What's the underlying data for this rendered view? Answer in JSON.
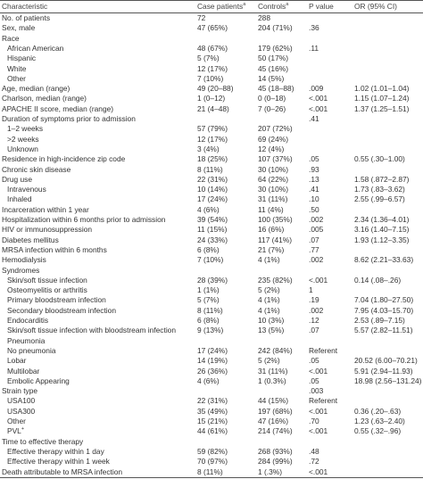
{
  "header": {
    "columns": [
      {
        "text": "Characteristic"
      },
      {
        "text": "Case patients",
        "sup": "a"
      },
      {
        "text": "Controls",
        "sup": "a"
      },
      {
        "text": "P value"
      },
      {
        "text": "OR (95% CI)"
      }
    ]
  },
  "table": {
    "rows": [
      {
        "cells": [
          "No. of patients",
          "72",
          "288",
          null,
          null
        ]
      },
      {
        "cells": [
          "Sex, male",
          "47 (65%)",
          "204 (71%)",
          ".36",
          null
        ]
      },
      {
        "cells": [
          "Race",
          null,
          null,
          null,
          null
        ]
      },
      {
        "cells": [
          "African American",
          "48 (67%)",
          "179 (62%)",
          ".11",
          null
        ],
        "indent": true
      },
      {
        "cells": [
          "Hispanic",
          "5 (7%)",
          "50 (17%)",
          null,
          null
        ],
        "indent": true
      },
      {
        "cells": [
          "White",
          "12 (17%)",
          "45 (16%)",
          null,
          null
        ],
        "indent": true
      },
      {
        "cells": [
          "Other",
          "7 (10%)",
          "14 (5%)",
          null,
          null
        ],
        "indent": true
      },
      {
        "cells": [
          "Age, median (range)",
          "49 (20–88)",
          "45 (18–88)",
          ".009",
          "1.02 (1.01–1.04)"
        ]
      },
      {
        "cells": [
          "Charlson, median (range)",
          "1 (0–12)",
          "0 (0–18)",
          "<.001",
          "1.15 (1.07–1.24)"
        ]
      },
      {
        "cells": [
          "APACHE II score, median (range)",
          "21 (4–48)",
          "7 (0–26)",
          "<.001",
          "1.37 (1.25–1.51)"
        ]
      },
      {
        "cells": [
          "Duration of symptoms prior to admission",
          null,
          null,
          ".41",
          null
        ]
      },
      {
        "cells": [
          "1–2 weeks",
          "57 (79%)",
          "207 (72%)",
          null,
          null
        ],
        "indent": true
      },
      {
        "cells": [
          ">2 weeks",
          "12 (17%)",
          "69 (24%)",
          null,
          null
        ],
        "indent": true
      },
      {
        "cells": [
          "Unknown",
          "3 (4%)",
          "12 (4%)",
          null,
          null
        ],
        "indent": true
      },
      {
        "cells": [
          "Residence in high-incidence zip code",
          "18 (25%)",
          "107 (37%)",
          ".05",
          "0.55 (.30–1.00)"
        ]
      },
      {
        "cells": [
          "Chronic skin disease",
          "8 (11%)",
          "30 (10%)",
          ".93",
          null
        ]
      },
      {
        "cells": [
          "Drug use",
          "22 (31%)",
          "64 (22%)",
          ".13",
          "1.58 (.872–2.87)"
        ]
      },
      {
        "cells": [
          "Intravenous",
          "10 (14%)",
          "30 (10%)",
          ".41",
          "1.73 (.83–3.62)"
        ],
        "indent": true
      },
      {
        "cells": [
          "Inhaled",
          "17 (24%)",
          "31 (11%)",
          ".10",
          "2.55 (.99–6.57)"
        ],
        "indent": true
      },
      {
        "cells": [
          "Incarceration within 1 year",
          "4 (6%)",
          "11 (4%)",
          ".50",
          null
        ]
      },
      {
        "cells": [
          "Hospitalization within 6 months prior to admission",
          "39 (54%)",
          "100 (35%)",
          ".002",
          "2.34 (1.36–4.01)"
        ]
      },
      {
        "cells": [
          "HIV or immunosuppression",
          "11 (15%)",
          "16 (6%)",
          ".005",
          "3.16 (1.40–7.15)"
        ]
      },
      {
        "cells": [
          "Diabetes mellitus",
          "24 (33%)",
          "117 (41%)",
          ".07",
          "1.93 (1.12–3.35)"
        ]
      },
      {
        "cells": [
          "MRSA infection within 6 months",
          "6 (8%)",
          "21 (7%)",
          ".77",
          null
        ]
      },
      {
        "cells": [
          "Hemodialysis",
          "7 (10%)",
          "4 (1%)",
          ".002",
          "8.62 (2.21–33.63)"
        ]
      },
      {
        "cells": [
          "Syndromes",
          null,
          null,
          null,
          null
        ]
      },
      {
        "cells": [
          "Skin/soft tissue infection",
          "28 (39%)",
          "235 (82%)",
          "<.001",
          "0.14 (.08–.26)"
        ],
        "indent": true
      },
      {
        "cells": [
          "Osteomyelitis or arthritis",
          "1 (1%)",
          "5 (2%)",
          "1",
          null
        ],
        "indent": true
      },
      {
        "cells": [
          "Primary bloodstream infection",
          "5 (7%)",
          "4 (1%)",
          ".19",
          "7.04 (1.80–27.50)"
        ],
        "indent": true
      },
      {
        "cells": [
          "Secondary bloodstream infection",
          "8 (11%)",
          "4 (1%)",
          ".002",
          "7.95 (4.03–15.70)"
        ],
        "indent": true
      },
      {
        "cells": [
          "Endocarditis",
          "6 (8%)",
          "10 (3%)",
          ".12",
          "2.53 (.89–7.15)"
        ],
        "indent": true
      },
      {
        "cells": [
          "Skin/soft tissue infection with bloodstream infection",
          "9 (13%)",
          "13 (5%)",
          ".07",
          "5.57 (2.82–11.51)"
        ],
        "indent": true
      },
      {
        "cells": [
          "Pneumonia",
          null,
          null,
          null,
          null
        ],
        "indent": true
      },
      {
        "cells": [
          "No pneumonia",
          "17 (24%)",
          "242 (84%)",
          "Referent",
          null
        ],
        "indent": true
      },
      {
        "cells": [
          "Lobar",
          "14 (19%)",
          "5 (2%)",
          ".05",
          "20.52 (6.00–70.21)"
        ],
        "indent": true
      },
      {
        "cells": [
          "Multilobar",
          "26 (36%)",
          "31 (11%)",
          "<.001",
          "5.91 (2.94–11.93)"
        ],
        "indent": true
      },
      {
        "cells": [
          "Embolic Appearing",
          "4 (6%)",
          "1 (0.3%)",
          ".05",
          "18.98 (2.56–131.24)"
        ],
        "indent": true
      },
      {
        "cells": [
          "Strain type",
          null,
          null,
          ".003",
          null
        ]
      },
      {
        "cells": [
          "USA100",
          "22 (31%)",
          "44 (15%)",
          "Referent",
          null
        ],
        "indent": true
      },
      {
        "cells": [
          "USA300",
          "35 (49%)",
          "197 (68%)",
          "<.001",
          "0.36 (.20–.63)"
        ],
        "indent": true
      },
      {
        "cells": [
          "Other",
          "15 (21%)",
          "47 (16%)",
          ".70",
          "1.23 (.63–2.40)"
        ],
        "indent": true
      },
      {
        "cells": [
          "PVL",
          "44 (61%)",
          "214 (74%)",
          "<.001",
          "0.55 (.32–.96)"
        ],
        "indent": true,
        "sup": "+"
      },
      {
        "cells": [
          "Time to effective therapy",
          null,
          null,
          null,
          null
        ]
      },
      {
        "cells": [
          "Effective therapy within 1 day",
          "59 (82%)",
          "268 (93%)",
          ".48",
          null
        ],
        "indent": true
      },
      {
        "cells": [
          "Effective therapy within 1 week",
          "70 (97%)",
          "284 (99%)",
          ".72",
          null
        ],
        "indent": true
      },
      {
        "cells": [
          "Death attributable to MRSA infection",
          "8 (11%)",
          "1 (.3%)",
          "<.001",
          null
        ]
      }
    ]
  }
}
